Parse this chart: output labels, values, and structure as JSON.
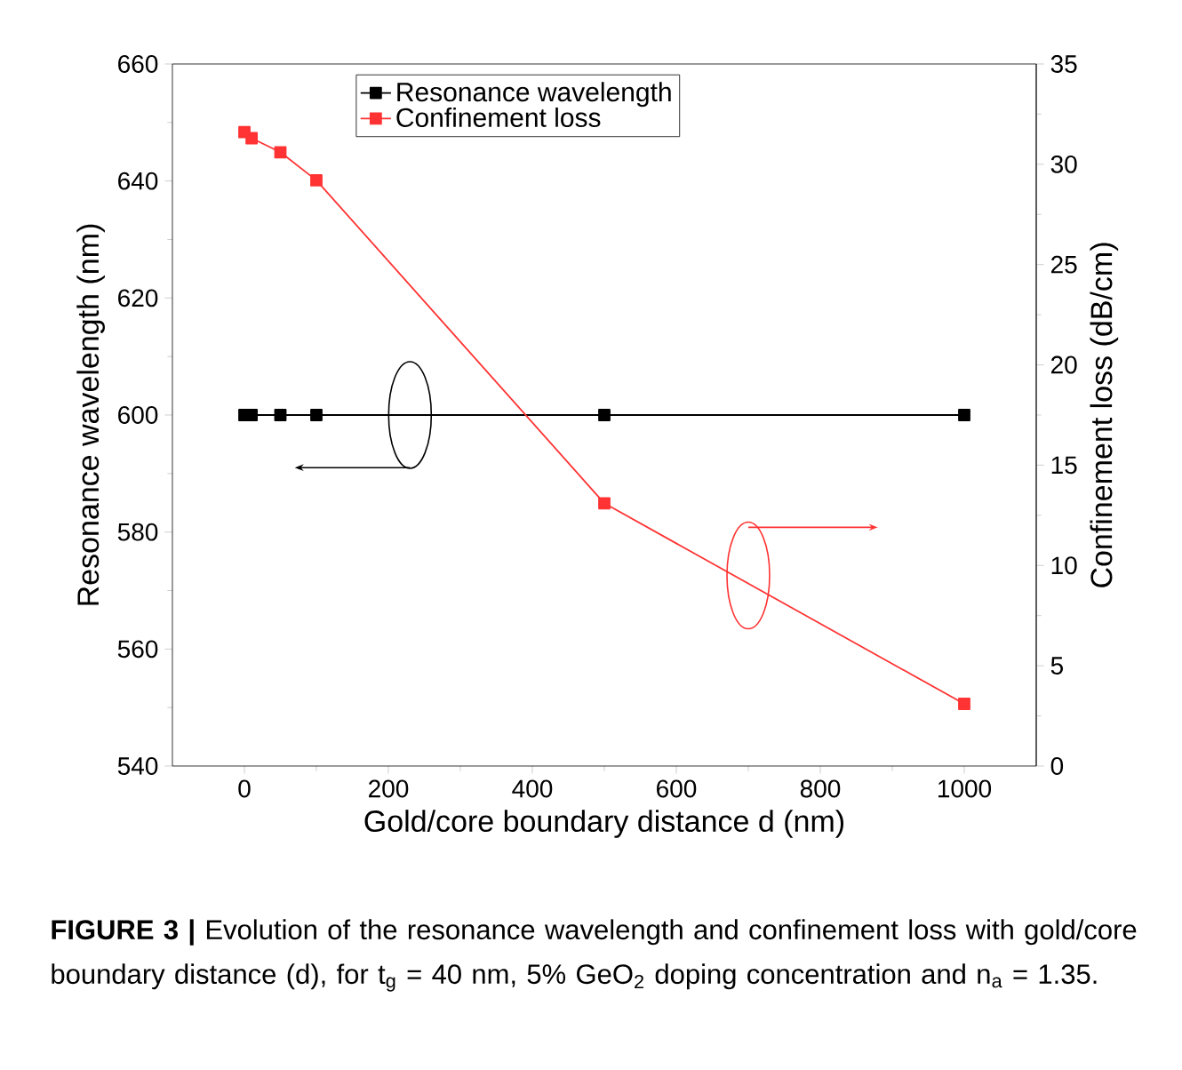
{
  "chart_data": {
    "type": "line",
    "xlabel": "Gold/core boundary distance d (nm)",
    "ylabel": "Resonance wavelength (nm)",
    "y2label": "Confinement loss (dB/cm)",
    "x": [
      0,
      10,
      50,
      100,
      500,
      1000
    ],
    "series": [
      {
        "name": "Resonance wavelength",
        "color": "#000000",
        "values": [
          600,
          600,
          600,
          600,
          600,
          600
        ]
      },
      {
        "name": "Confinement loss",
        "color": "#ff3333",
        "axis": "y2",
        "values": [
          31.6,
          31.3,
          30.6,
          29.2,
          13.1,
          3.1
        ]
      }
    ],
    "xlim": [
      -100,
      1100
    ],
    "xticks": [
      0,
      200,
      400,
      600,
      800,
      1000
    ],
    "ylim": [
      540,
      660
    ],
    "yticks": [
      540,
      560,
      580,
      600,
      620,
      640,
      660
    ],
    "y2lim": [
      0,
      35
    ],
    "y2ticks": [
      0,
      5,
      10,
      15,
      20,
      25,
      30,
      35
    ],
    "marker": "square",
    "line_style": "solid",
    "grid": false,
    "legend": "top",
    "annotations": [
      "**FIGURE 3 |** Evolution of the resonance wavelength and confinement loss with gold/core boundary distance (d), for t$_{g}$ = 40 nm, 5% GeO$_{2}$ doping concentration and n$_{a}$ = 1.35."
    ]
  }
}
